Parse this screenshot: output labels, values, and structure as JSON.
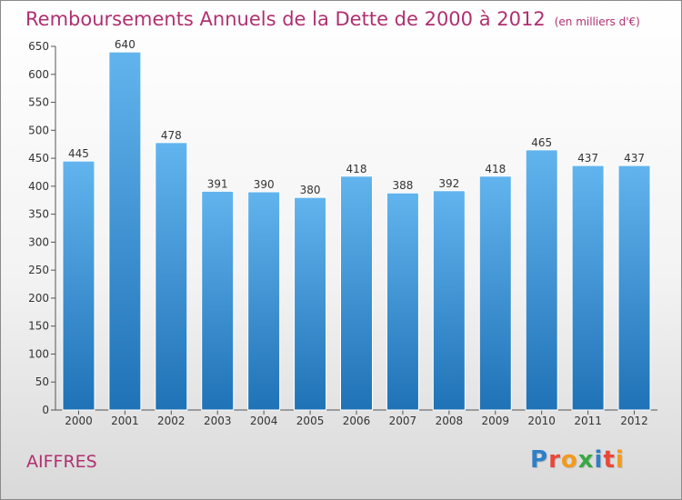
{
  "title": "Remboursements Annuels de la Dette de 2000 à 2012",
  "subtitle": "(en milliers d'€)",
  "commune": "AIFFRES",
  "logo": {
    "letters": [
      "P",
      "r",
      "o",
      "x",
      "i",
      "t",
      "i"
    ],
    "colors": [
      "#2e7fc8",
      "#e8483a",
      "#f39a1c",
      "#3aa845",
      "#2e7fc8",
      "#e8483a",
      "#f39a1c"
    ]
  },
  "colors": {
    "bar_top": "#62b4ee",
    "bar_bottom": "#1f72b6",
    "title": "#b03070"
  },
  "chart_data": {
    "type": "bar",
    "categories": [
      "2000",
      "2001",
      "2002",
      "2003",
      "2004",
      "2005",
      "2006",
      "2007",
      "2008",
      "2009",
      "2010",
      "2011",
      "2012"
    ],
    "values": [
      445,
      640,
      478,
      391,
      390,
      380,
      418,
      388,
      392,
      418,
      465,
      437,
      437
    ],
    "ylim": [
      0,
      650
    ],
    "yticks": [
      0,
      50,
      100,
      150,
      200,
      250,
      300,
      350,
      400,
      450,
      500,
      550,
      600,
      650
    ],
    "grid": false,
    "xlabel": "",
    "ylabel": ""
  }
}
